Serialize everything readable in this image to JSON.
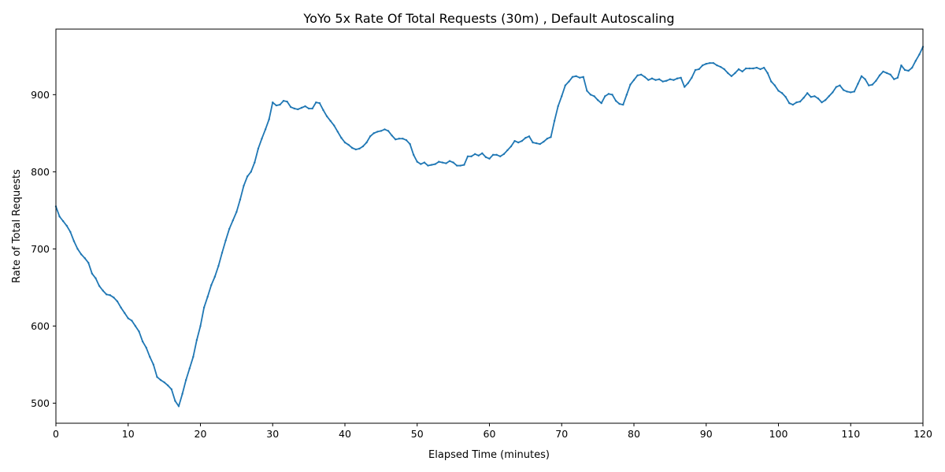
{
  "chart_data": {
    "type": "line",
    "title": "YoYo 5x Rate Of Total Requests (30m) , Default Autoscaling",
    "xlabel": "Elapsed Time (minutes)",
    "ylabel": "Rate of Total Requests",
    "xlim": [
      0,
      120
    ],
    "ylim": [
      474,
      985
    ],
    "xticks": [
      "0",
      "10",
      "20",
      "30",
      "40",
      "50",
      "60",
      "70",
      "80",
      "90",
      "100",
      "110",
      "120"
    ],
    "yticks": [
      "500",
      "600",
      "700",
      "800",
      "900"
    ],
    "grid": false,
    "line_color": "#1f77b4",
    "series": [
      {
        "points": [
          [
            0,
            755
          ],
          [
            0.5,
            742
          ],
          [
            1,
            736
          ],
          [
            1.5,
            730
          ],
          [
            2,
            722
          ],
          [
            2.5,
            710
          ],
          [
            3,
            700
          ],
          [
            3.5,
            693
          ],
          [
            4,
            688
          ],
          [
            4.5,
            682
          ],
          [
            5,
            668
          ],
          [
            5.5,
            662
          ],
          [
            6,
            652
          ],
          [
            6.5,
            646
          ],
          [
            7,
            641
          ],
          [
            7.5,
            640
          ],
          [
            8,
            637
          ],
          [
            8.5,
            632
          ],
          [
            9,
            624
          ],
          [
            9.5,
            617
          ],
          [
            10,
            610
          ],
          [
            10.5,
            607
          ],
          [
            11,
            600
          ],
          [
            11.5,
            593
          ],
          [
            12,
            580
          ],
          [
            12.5,
            572
          ],
          [
            13,
            560
          ],
          [
            13.5,
            550
          ],
          [
            14,
            534
          ],
          [
            14.5,
            530
          ],
          [
            15,
            527
          ],
          [
            15.5,
            523
          ],
          [
            16,
            518
          ],
          [
            16.5,
            503
          ],
          [
            17,
            496
          ],
          [
            17.5,
            512
          ],
          [
            18,
            530
          ],
          [
            18.5,
            545
          ],
          [
            19,
            560
          ],
          [
            19.5,
            582
          ],
          [
            20,
            600
          ],
          [
            20.5,
            624
          ],
          [
            21,
            638
          ],
          [
            21.5,
            653
          ],
          [
            22,
            664
          ],
          [
            22.5,
            678
          ],
          [
            23,
            695
          ],
          [
            23.5,
            711
          ],
          [
            24,
            726
          ],
          [
            24.5,
            737
          ],
          [
            25,
            748
          ],
          [
            25.5,
            764
          ],
          [
            26,
            782
          ],
          [
            26.5,
            794
          ],
          [
            27,
            800
          ],
          [
            27.5,
            812
          ],
          [
            28,
            830
          ],
          [
            28.5,
            843
          ],
          [
            29,
            855
          ],
          [
            29.5,
            868
          ],
          [
            30,
            890
          ],
          [
            30.5,
            886
          ],
          [
            31,
            887
          ],
          [
            31.5,
            892
          ],
          [
            32,
            891
          ],
          [
            32.5,
            884
          ],
          [
            33,
            882
          ],
          [
            33.5,
            881
          ],
          [
            34,
            883
          ],
          [
            34.5,
            885
          ],
          [
            35,
            882
          ],
          [
            35.5,
            882
          ],
          [
            36,
            890
          ],
          [
            36.5,
            889
          ],
          [
            37,
            880
          ],
          [
            37.5,
            872
          ],
          [
            38,
            866
          ],
          [
            38.5,
            860
          ],
          [
            39,
            852
          ],
          [
            39.5,
            844
          ],
          [
            40,
            838
          ],
          [
            40.5,
            835
          ],
          [
            41,
            831
          ],
          [
            41.5,
            829
          ],
          [
            42,
            830
          ],
          [
            42.5,
            833
          ],
          [
            43,
            838
          ],
          [
            43.5,
            846
          ],
          [
            44,
            850
          ],
          [
            44.5,
            852
          ],
          [
            45,
            853
          ],
          [
            45.5,
            855
          ],
          [
            46,
            853
          ],
          [
            46.5,
            847
          ],
          [
            47,
            842
          ],
          [
            47.5,
            843
          ],
          [
            48,
            843
          ],
          [
            48.5,
            841
          ],
          [
            49,
            836
          ],
          [
            49.5,
            822
          ],
          [
            50,
            813
          ],
          [
            50.5,
            810
          ],
          [
            51,
            812
          ],
          [
            51.5,
            808
          ],
          [
            52,
            809
          ],
          [
            52.5,
            810
          ],
          [
            53,
            813
          ],
          [
            53.5,
            812
          ],
          [
            54,
            811
          ],
          [
            54.5,
            814
          ],
          [
            55,
            812
          ],
          [
            55.5,
            808
          ],
          [
            56,
            808
          ],
          [
            56.5,
            809
          ],
          [
            57,
            820
          ],
          [
            57.5,
            820
          ],
          [
            58,
            823
          ],
          [
            58.5,
            821
          ],
          [
            59,
            824
          ],
          [
            59.5,
            819
          ],
          [
            60,
            817
          ],
          [
            60.5,
            822
          ],
          [
            61,
            822
          ],
          [
            61.5,
            820
          ],
          [
            62,
            823
          ],
          [
            62.5,
            828
          ],
          [
            63,
            833
          ],
          [
            63.5,
            840
          ],
          [
            64,
            838
          ],
          [
            64.5,
            840
          ],
          [
            65,
            844
          ],
          [
            65.5,
            846
          ],
          [
            66,
            838
          ],
          [
            66.5,
            837
          ],
          [
            67,
            836
          ],
          [
            67.5,
            839
          ],
          [
            68,
            843
          ],
          [
            68.5,
            845
          ],
          [
            69,
            866
          ],
          [
            69.5,
            885
          ],
          [
            70,
            898
          ],
          [
            70.5,
            912
          ],
          [
            71,
            917
          ],
          [
            71.5,
            923
          ],
          [
            72,
            924
          ],
          [
            72.5,
            922
          ],
          [
            73,
            923
          ],
          [
            73.5,
            905
          ],
          [
            74,
            900
          ],
          [
            74.5,
            898
          ],
          [
            75,
            893
          ],
          [
            75.5,
            889
          ],
          [
            76,
            898
          ],
          [
            76.5,
            901
          ],
          [
            77,
            900
          ],
          [
            77.5,
            892
          ],
          [
            78,
            888
          ],
          [
            78.5,
            887
          ],
          [
            79,
            900
          ],
          [
            79.5,
            913
          ],
          [
            80,
            919
          ],
          [
            80.5,
            925
          ],
          [
            81,
            926
          ],
          [
            81.5,
            923
          ],
          [
            82,
            919
          ],
          [
            82.5,
            921
          ],
          [
            83,
            919
          ],
          [
            83.5,
            920
          ],
          [
            84,
            917
          ],
          [
            84.5,
            918
          ],
          [
            85,
            920
          ],
          [
            85.5,
            919
          ],
          [
            86,
            921
          ],
          [
            86.5,
            922
          ],
          [
            87,
            910
          ],
          [
            87.5,
            915
          ],
          [
            88,
            922
          ],
          [
            88.5,
            932
          ],
          [
            89,
            933
          ],
          [
            89.5,
            938
          ],
          [
            90,
            940
          ],
          [
            90.5,
            941
          ],
          [
            91,
            941
          ],
          [
            91.5,
            938
          ],
          [
            92,
            936
          ],
          [
            92.5,
            933
          ],
          [
            93,
            928
          ],
          [
            93.5,
            924
          ],
          [
            94,
            928
          ],
          [
            94.5,
            933
          ],
          [
            95,
            930
          ],
          [
            95.5,
            934
          ],
          [
            96,
            934
          ],
          [
            96.5,
            934
          ],
          [
            97,
            935
          ],
          [
            97.5,
            933
          ],
          [
            98,
            935
          ],
          [
            98.5,
            928
          ],
          [
            99,
            917
          ],
          [
            99.5,
            912
          ],
          [
            100,
            905
          ],
          [
            100.5,
            902
          ],
          [
            101,
            897
          ],
          [
            101.5,
            889
          ],
          [
            102,
            887
          ],
          [
            102.5,
            890
          ],
          [
            103,
            891
          ],
          [
            103.5,
            896
          ],
          [
            104,
            902
          ],
          [
            104.5,
            897
          ],
          [
            105,
            898
          ],
          [
            105.5,
            895
          ],
          [
            106,
            890
          ],
          [
            106.5,
            893
          ],
          [
            107,
            898
          ],
          [
            107.5,
            903
          ],
          [
            108,
            910
          ],
          [
            108.5,
            912
          ],
          [
            109,
            906
          ],
          [
            109.5,
            904
          ],
          [
            110,
            903
          ],
          [
            110.5,
            904
          ],
          [
            111,
            914
          ],
          [
            111.5,
            924
          ],
          [
            112,
            920
          ],
          [
            112.5,
            912
          ],
          [
            113,
            913
          ],
          [
            113.5,
            918
          ],
          [
            114,
            925
          ],
          [
            114.5,
            930
          ],
          [
            115,
            928
          ],
          [
            115.5,
            926
          ],
          [
            116,
            920
          ],
          [
            116.5,
            922
          ],
          [
            117,
            938
          ],
          [
            117.5,
            932
          ],
          [
            118,
            931
          ],
          [
            118.5,
            935
          ],
          [
            119,
            944
          ],
          [
            119.5,
            952
          ],
          [
            120,
            962
          ]
        ]
      }
    ]
  }
}
